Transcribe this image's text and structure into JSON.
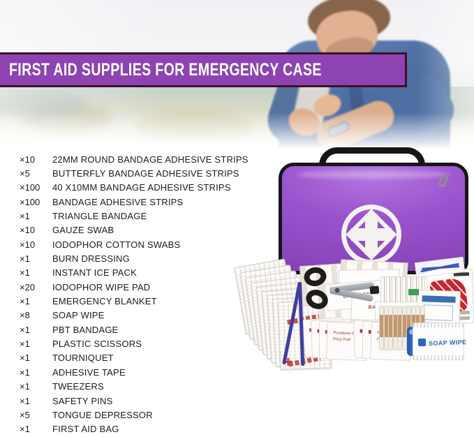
{
  "banner": {
    "title": "FIRST AID SUPPLIES FOR EMERGENCY CASE",
    "background_color": "#8d44b2",
    "border_color": "#3f1026",
    "text_color": "#ffffff"
  },
  "supply_list": {
    "items": [
      {
        "qty": "×10",
        "label": "22MM ROUND BANDAGE ADHESIVE STRIPS"
      },
      {
        "qty": "×5",
        "label": "BUTTERFLY BANDAGE ADHESIVE STRIPS"
      },
      {
        "qty": "×100",
        "label": "40 X10MM BANDAGE ADHESIVE STRIPS"
      },
      {
        "qty": "×100",
        "label": "BANDAGE ADHESIVE STRIPS"
      },
      {
        "qty": "×1",
        "label": "TRIANGLE BANDAGE"
      },
      {
        "qty": "×10",
        "label": "GAUZE SWAB"
      },
      {
        "qty": "×10",
        "label": "IODOPHOR COTTON SWABS"
      },
      {
        "qty": "×1",
        "label": "BURN DRESSING"
      },
      {
        "qty": "×1",
        "label": "INSTANT ICE PACK"
      },
      {
        "qty": "×20",
        "label": "IODOPHOR WIPE PAD"
      },
      {
        "qty": "×1",
        "label": "EMERGENCY BLANKET"
      },
      {
        "qty": "×8",
        "label": "SOAP WIPE"
      },
      {
        "qty": "×1",
        "label": "PBT BANDAGE"
      },
      {
        "qty": "×1",
        "label": "PLASTIC SCISSORS"
      },
      {
        "qty": "×1",
        "label": "TOURNIQUET"
      },
      {
        "qty": "×1",
        "label": "ADHESIVE TAPE"
      },
      {
        "qty": "×1",
        "label": "TWEEZERS"
      },
      {
        "qty": "×1",
        "label": "SAFETY PINS"
      },
      {
        "qty": "×5",
        "label": "TONGUE DEPRESSOR"
      },
      {
        "qty": "×1",
        "label": "FIRST AID BAG"
      }
    ]
  },
  "kit": {
    "bag_color": "#9a53cd",
    "bag_trim_color": "#161616",
    "logo_icon": "medical-cross-diamond",
    "soap_wipe_label": "SOAP WIPE",
    "prep_pad_line1": "Povidone-Iodine",
    "prep_pad_line2": "Prep Pad",
    "bandage_packet_label": "BANDAGE",
    "accent_red": "#c5403a",
    "accent_blue": "#2a6ab8"
  }
}
